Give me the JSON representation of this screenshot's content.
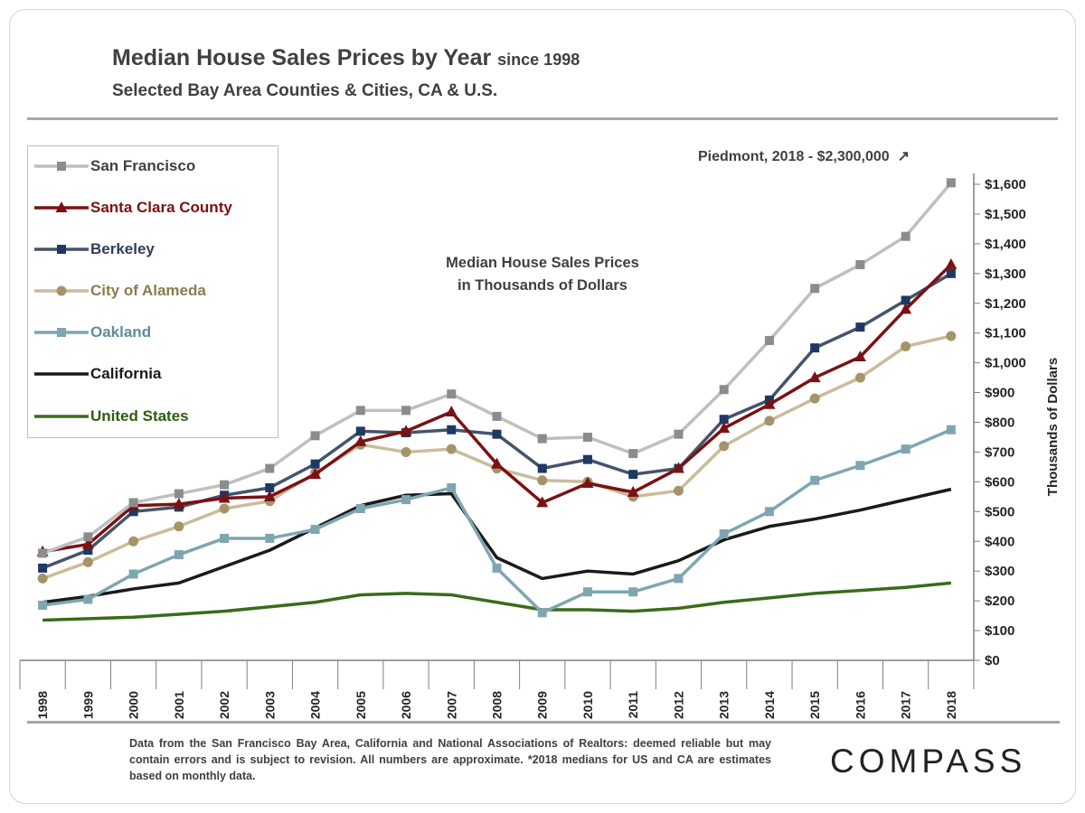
{
  "header": {
    "title": "Median House Sales Prices by Year",
    "title_suffix": "since 1998",
    "subtitle": "Selected Bay Area Counties & Cities, CA & U.S."
  },
  "annotations": {
    "center_line1": "Median House Sales Prices",
    "center_line2": "in Thousands of Dollars",
    "piedmont": "Piedmont, 2018 - $2,300,000",
    "piedmont_arrow": "↗"
  },
  "footer": {
    "note": "Data from the San Francisco Bay Area, California and National Associations of Realtors:  deemed reliable but may contain errors and is subject to revision. All numbers are approximate.  *2018 medians for US and CA are estimates based on monthly data.",
    "logo": "COMPASS"
  },
  "chart_data": {
    "type": "line",
    "ylabel": "Thousands of Dollars",
    "ylim": [
      0,
      1600
    ],
    "yticks": [
      0,
      100,
      200,
      300,
      400,
      500,
      600,
      700,
      800,
      900,
      1000,
      1100,
      1200,
      1300,
      1400,
      1500,
      1600
    ],
    "ytick_labels": [
      "$0",
      "$100",
      "$200",
      "$300",
      "$400",
      "$500",
      "$600",
      "$700",
      "$800",
      "$900",
      "$1,000",
      "$1,100",
      "$1,200",
      "$1,300",
      "$1,400",
      "$1,500",
      "$1,600"
    ],
    "categories": [
      "1998",
      "1999",
      "2000",
      "2001",
      "2002",
      "2003",
      "2004",
      "2005",
      "2006",
      "2007",
      "2008",
      "2009",
      "2010",
      "2011",
      "2012",
      "2013",
      "2014",
      "2015",
      "2016",
      "2017",
      "2018"
    ],
    "grid": false,
    "legend_position": "top-left",
    "series": [
      {
        "name": "San Francisco",
        "color": "#bfbfbf",
        "marker": "square",
        "marker_color": "#8c8c8c",
        "label_color": "#404040",
        "values": [
          360,
          415,
          530,
          560,
          590,
          645,
          755,
          840,
          840,
          895,
          820,
          745,
          750,
          695,
          760,
          910,
          1075,
          1250,
          1330,
          1425,
          1605
        ]
      },
      {
        "name": "Santa Clara County",
        "color": "#7b1113",
        "marker": "triangle",
        "marker_color": "#7b1113",
        "label_color": "#7b1113",
        "values": [
          365,
          390,
          520,
          525,
          545,
          550,
          625,
          735,
          770,
          835,
          660,
          530,
          595,
          565,
          645,
          780,
          860,
          950,
          1020,
          1180,
          1330
        ]
      },
      {
        "name": "Berkeley",
        "color": "#44546a",
        "marker": "square",
        "marker_color": "#1f3864",
        "label_color": "#2e3f55",
        "values": [
          310,
          370,
          500,
          515,
          555,
          580,
          660,
          770,
          765,
          775,
          760,
          645,
          675,
          625,
          645,
          810,
          875,
          1050,
          1120,
          1210,
          1300
        ]
      },
      {
        "name": "City of Alameda",
        "color": "#c9bc9c",
        "marker": "circle",
        "marker_color": "#a5946a",
        "label_color": "#8c7b50",
        "values": [
          275,
          330,
          400,
          450,
          510,
          535,
          630,
          725,
          700,
          710,
          645,
          605,
          600,
          550,
          570,
          720,
          805,
          880,
          950,
          1055,
          1090
        ]
      },
      {
        "name": "Oakland",
        "color": "#7fa6b0",
        "marker": "square",
        "marker_color": "#7fa6b0",
        "label_color": "#5f8d99",
        "values": [
          185,
          205,
          290,
          355,
          410,
          410,
          440,
          510,
          540,
          580,
          310,
          160,
          230,
          230,
          275,
          425,
          500,
          605,
          655,
          710,
          775
        ]
      },
      {
        "name": "California",
        "color": "#1a1a1a",
        "marker": "none",
        "marker_color": "#1a1a1a",
        "label_color": "#1a1a1a",
        "values": [
          195,
          215,
          240,
          260,
          315,
          370,
          445,
          520,
          555,
          560,
          345,
          275,
          300,
          290,
          335,
          405,
          450,
          475,
          505,
          540,
          575
        ]
      },
      {
        "name": "United States",
        "color": "#3a6b1a",
        "marker": "none",
        "marker_color": "#3a6b1a",
        "label_color": "#2e5c10",
        "values": [
          135,
          140,
          145,
          155,
          165,
          180,
          195,
          220,
          225,
          220,
          195,
          170,
          170,
          165,
          175,
          195,
          210,
          225,
          235,
          245,
          260
        ]
      }
    ]
  }
}
